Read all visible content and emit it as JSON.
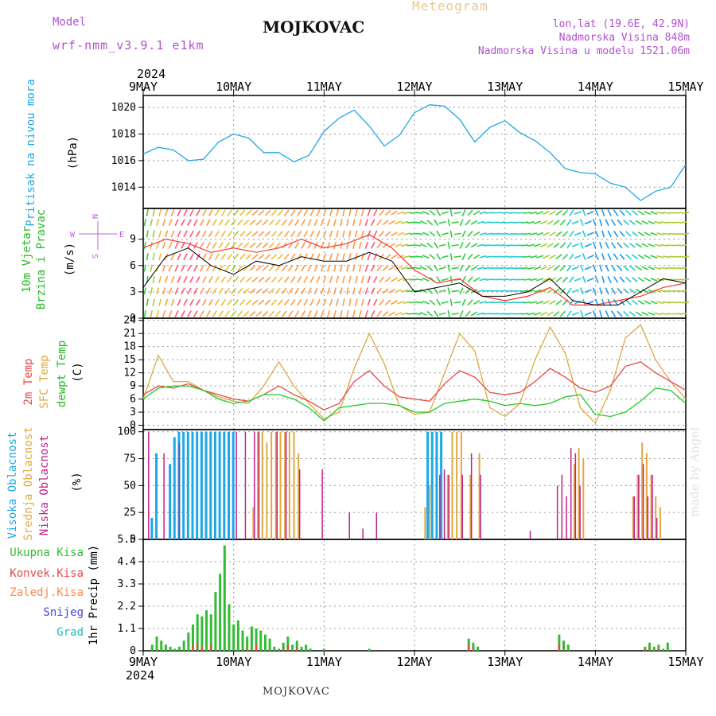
{
  "header": {
    "title": "MOJKOVAC",
    "meteogram": "Meteogram",
    "model_label": "Model",
    "model_name": "wrf-nmm_v3.9.1 e1km",
    "coords": "lon,lat (19.6E, 42.9N)",
    "elevation": "Nadmorska Visina 848m",
    "elevation_model": "Nadmorska Visina u modelu 1521.06m"
  },
  "footer": {
    "station": "MOJKOVAC",
    "credit": "made by Angel"
  },
  "time_axis": {
    "year": "2024",
    "ticks": [
      "9MAY",
      "10MAY",
      "11MAY",
      "12MAY",
      "13MAY",
      "14MAY",
      "15MAY"
    ]
  },
  "colors": {
    "pressure": "#1ea8e8",
    "temp2m": "#e84848",
    "sfc_temp": "#e0a840",
    "dewpoint": "#22cc22",
    "high_cloud": "#1ea8e8",
    "mid_cloud": "#e0a840",
    "low_cloud": "#c0208a",
    "total_precip": "#33bb33",
    "conv_precip": "#e84848",
    "frozen_precip": "#ff8844",
    "snow": "#4444dd",
    "hail": "#22bbbb",
    "wind_label": "#22bb22",
    "compass": "#c060e0"
  },
  "chart_data": [
    {
      "type": "line",
      "panel": "pressure",
      "ylabel": [
        "Pritisak na nivou mora",
        "(hPa)"
      ],
      "ylim": [
        1012.4,
        1020.9
      ],
      "yticks": [
        1014,
        1016,
        1018,
        1020
      ],
      "grid": true,
      "x_days": [
        0,
        0.167,
        0.333,
        0.5,
        0.667,
        0.833,
        1,
        1.167,
        1.333,
        1.5,
        1.667,
        1.833,
        2,
        2.167,
        2.333,
        2.5,
        2.667,
        2.833,
        3,
        3.167,
        3.333,
        3.5,
        3.667,
        3.833,
        4,
        4.167,
        4.333,
        4.5,
        4.667,
        4.833,
        5,
        5.167,
        5.333,
        5.5,
        5.667,
        5.833,
        6
      ],
      "series": [
        {
          "name": "Pressure",
          "values": [
            1016.5,
            1017.0,
            1016.8,
            1016.0,
            1016.1,
            1017.4,
            1018.0,
            1017.7,
            1016.6,
            1016.6,
            1015.9,
            1016.4,
            1018.2,
            1019.2,
            1019.8,
            1018.6,
            1017.1,
            1017.9,
            1019.6,
            1020.2,
            1020.1,
            1019.1,
            1017.4,
            1018.5,
            1019.0,
            1018.1,
            1017.5,
            1016.6,
            1015.4,
            1015.1,
            1015.0,
            1014.3,
            1014.0,
            1013.0,
            1013.7,
            1014.0,
            1015.7
          ]
        }
      ]
    },
    {
      "type": "line",
      "panel": "wind",
      "ylabel": [
        "10m Vjetar",
        "Brzina i Pravac",
        "(m/s)"
      ],
      "ylim": [
        0,
        12.5
      ],
      "yticks": [
        0,
        3,
        6,
        9
      ],
      "grid": true,
      "compass": {
        "n": "N",
        "w": "W",
        "e": "E",
        "s": "S"
      },
      "x_days": [
        0,
        0.25,
        0.5,
        0.75,
        1,
        1.25,
        1.5,
        1.75,
        2,
        2.25,
        2.5,
        2.75,
        3,
        3.25,
        3.5,
        3.75,
        4,
        4.25,
        4.5,
        4.75,
        5,
        5.25,
        5.5,
        5.75,
        6
      ],
      "series": [
        {
          "name": "Wind speed",
          "values": [
            3.5,
            7.0,
            8.0,
            6.0,
            5.0,
            6.5,
            6.0,
            7.0,
            6.5,
            6.5,
            7.5,
            6.5,
            3.0,
            3.5,
            4.0,
            2.5,
            2.5,
            3.0,
            4.5,
            2.0,
            1.5,
            1.5,
            3.0,
            4.5,
            4.0
          ]
        },
        {
          "name": "Wind gust",
          "values": [
            8.0,
            9.0,
            8.5,
            7.5,
            8.0,
            7.5,
            8.0,
            9.0,
            8.0,
            8.5,
            9.5,
            8.0,
            5.5,
            4.0,
            4.5,
            2.5,
            2.0,
            2.5,
            3.5,
            1.5,
            1.5,
            2.0,
            2.5,
            3.5,
            4.0
          ]
        }
      ],
      "wind_direction_deg": [
        190,
        200,
        210,
        210,
        220,
        230,
        220,
        210,
        200,
        190,
        200,
        240,
        270,
        330,
        20,
        80,
        100,
        80,
        60,
        30,
        350,
        320,
        300,
        280,
        260
      ]
    },
    {
      "type": "line",
      "panel": "temperature",
      "ylabel": [
        "2m Temp",
        "SFC Temp",
        "dewpt Temp",
        "(C)"
      ],
      "ylim": [
        -1,
        24.5
      ],
      "yticks": [
        0,
        3,
        6,
        9,
        12,
        15,
        18,
        21,
        24
      ],
      "grid": true,
      "x_days": [
        0,
        0.167,
        0.333,
        0.5,
        0.667,
        0.833,
        1,
        1.167,
        1.333,
        1.5,
        1.667,
        1.833,
        2,
        2.167,
        2.333,
        2.5,
        2.667,
        2.833,
        3,
        3.167,
        3.333,
        3.5,
        3.667,
        3.833,
        4,
        4.167,
        4.333,
        4.5,
        4.667,
        4.833,
        5,
        5.167,
        5.333,
        5.5,
        5.667,
        5.833,
        6
      ],
      "series": [
        {
          "name": "2m Temp",
          "values": [
            7.0,
            9.0,
            8.5,
            9.5,
            8.0,
            7.0,
            6.0,
            5.5,
            7.0,
            9.0,
            7.0,
            5.5,
            3.5,
            5.0,
            10.0,
            12.5,
            9.0,
            6.5,
            6.0,
            5.5,
            9.5,
            12.5,
            11.0,
            7.5,
            7.0,
            7.5,
            10.0,
            13.0,
            11.0,
            8.5,
            7.5,
            9.0,
            13.5,
            14.5,
            12.0,
            10.0,
            8.0
          ]
        },
        {
          "name": "SFC Temp",
          "values": [
            6.0,
            16.0,
            10.0,
            10.0,
            8.0,
            6.5,
            5.5,
            5.0,
            9.0,
            14.5,
            9.0,
            5.0,
            1.5,
            3.0,
            13.0,
            21.0,
            14.0,
            4.5,
            2.5,
            3.0,
            12.0,
            21.0,
            17.0,
            4.0,
            2.0,
            5.0,
            15.0,
            22.5,
            16.5,
            4.0,
            0.5,
            8.0,
            20.0,
            23.0,
            15.0,
            10.0,
            6.0
          ]
        },
        {
          "name": "dewpt Temp",
          "values": [
            6.0,
            8.5,
            9.0,
            9.0,
            8.0,
            6.0,
            5.0,
            5.5,
            7.0,
            7.0,
            6.0,
            4.0,
            1.0,
            4.0,
            4.5,
            5.0,
            5.0,
            4.5,
            3.0,
            3.0,
            5.0,
            5.5,
            6.0,
            5.5,
            4.5,
            5.0,
            4.5,
            5.0,
            6.5,
            7.0,
            2.5,
            2.0,
            3.0,
            5.5,
            8.5,
            8.0,
            5.0
          ]
        }
      ]
    },
    {
      "type": "bar",
      "panel": "clouds",
      "ylabel": [
        "Visoka Oblacnost",
        "Srednja Oblacnost",
        "Niska Oblacnost",
        "(%)"
      ],
      "ylim": [
        0,
        102
      ],
      "yticks": [
        0,
        25,
        50,
        75,
        100
      ],
      "grid": true,
      "series": [
        {
          "name": "Visoka Oblacnost",
          "x_days": [
            0.1,
            0.15,
            0.3,
            0.35,
            0.4,
            0.45,
            0.5,
            0.55,
            0.6,
            0.65,
            0.7,
            0.75,
            0.8,
            0.85,
            0.9,
            0.95,
            1.0,
            3.15,
            3.2,
            3.25,
            3.3
          ],
          "values": [
            20,
            80,
            70,
            95,
            100,
            100,
            100,
            100,
            100,
            100,
            100,
            100,
            100,
            100,
            100,
            100,
            100,
            100,
            100,
            100,
            100
          ]
        },
        {
          "name": "Srednja Oblacnost",
          "x_days": [
            1.2,
            1.25,
            1.3,
            1.35,
            1.4,
            1.45,
            1.5,
            1.55,
            1.6,
            1.65,
            1.7,
            3.1,
            3.15,
            3.35,
            3.4,
            3.45,
            3.5,
            3.6,
            3.7,
            4.75,
            4.8,
            4.85,
            5.4,
            5.45,
            5.5,
            5.55,
            5.6,
            5.65,
            5.7
          ],
          "values": [
            30,
            100,
            100,
            90,
            100,
            100,
            100,
            100,
            100,
            100,
            80,
            30,
            50,
            60,
            100,
            100,
            100,
            60,
            80,
            70,
            85,
            75,
            40,
            60,
            90,
            80,
            60,
            40,
            30
          ]
        },
        {
          "name": "Niska Oblacnost",
          "x_days": [
            0.08,
            0.25,
            0.42,
            1.05,
            1.15,
            1.25,
            1.3,
            1.5,
            1.6,
            1.75,
            2.0,
            2.3,
            2.45,
            2.6,
            3.3,
            3.35,
            3.4,
            3.55,
            3.65,
            3.75,
            4.3,
            4.6,
            4.65,
            4.7,
            4.75,
            4.8,
            4.85,
            5.45,
            5.5,
            5.55,
            5.6,
            5.65,
            5.7
          ],
          "values": [
            100,
            80,
            90,
            100,
            100,
            100,
            100,
            100,
            100,
            65,
            65,
            25,
            10,
            25,
            60,
            65,
            60,
            60,
            80,
            60,
            8,
            50,
            60,
            40,
            85,
            80,
            50,
            40,
            60,
            70,
            40,
            60,
            20
          ]
        }
      ]
    },
    {
      "type": "bar",
      "panel": "precipitation",
      "ylabel": [
        "1hr Precip (mm)"
      ],
      "ylim": [
        0,
        5.5
      ],
      "yticks": [
        0,
        1.1,
        2.2,
        3.3,
        4.4,
        5.5
      ],
      "grid": true,
      "legend": [
        "Ukupna Kisa",
        "Konvek.Kisa",
        "Zaledj.Kisa",
        "Snijeg",
        "Grad"
      ],
      "series": [
        {
          "name": "Ukupna Kisa",
          "x_days": [
            0.1,
            0.15,
            0.2,
            0.25,
            0.3,
            0.35,
            0.4,
            0.45,
            0.5,
            0.55,
            0.6,
            0.65,
            0.7,
            0.75,
            0.8,
            0.85,
            0.9,
            0.95,
            1.0,
            1.05,
            1.1,
            1.15,
            1.2,
            1.25,
            1.3,
            1.35,
            1.4,
            1.45,
            1.5,
            1.55,
            1.6,
            1.65,
            1.7,
            1.75,
            1.8,
            1.85,
            2.0,
            2.5,
            3.6,
            3.65,
            3.7,
            4.6,
            4.65,
            4.7,
            5.55,
            5.6,
            5.65,
            5.7,
            5.75,
            5.8
          ],
          "values": [
            0.3,
            0.7,
            0.5,
            0.3,
            0.2,
            0.1,
            0.2,
            0.5,
            0.9,
            1.3,
            1.8,
            1.7,
            2.0,
            1.8,
            2.9,
            3.8,
            5.2,
            2.3,
            1.3,
            1.5,
            1.0,
            0.7,
            1.2,
            1.1,
            1.0,
            0.8,
            0.6,
            0.2,
            0.1,
            0.4,
            0.7,
            0.3,
            0.5,
            0.2,
            0.3,
            0.1,
            0.1,
            0.1,
            0.6,
            0.4,
            0.2,
            0.8,
            0.5,
            0.3,
            0.2,
            0.4,
            0.2,
            0.3,
            0.1,
            0.4
          ]
        },
        {
          "name": "Konvek.Kisa",
          "x_days": [
            0.55,
            0.6,
            0.65,
            0.75,
            1.15,
            1.2,
            1.25,
            1.55,
            1.6,
            1.7,
            3.6,
            3.65,
            4.6,
            4.65,
            5.55,
            5.6,
            5.7
          ],
          "values": [
            0.3,
            0.4,
            0.2,
            0.3,
            0.2,
            0.1,
            0.3,
            0.2,
            0.3,
            0.2,
            0.3,
            0.2,
            0.4,
            0.2,
            0.1,
            0.2,
            0.1
          ]
        }
      ]
    }
  ]
}
